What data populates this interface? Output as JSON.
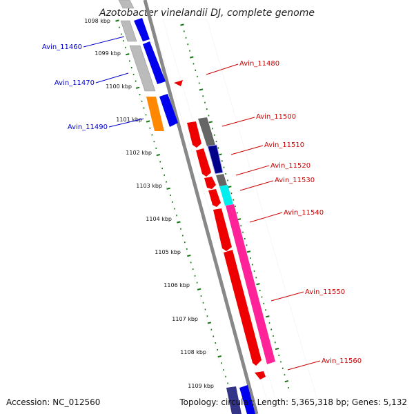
{
  "title": "Azotobacter vinelandii DJ, complete genome",
  "accession": "Accession: NC_012560",
  "summary": "Topology: circular; Length: 5,365,318 bp; Genes: 5,132",
  "ticks": [
    "1098 kbp",
    "1099 kbp",
    "1100 kbp",
    "1101 kbp",
    "1102 kbp",
    "1103 kbp",
    "1104 kbp",
    "1105 kbp",
    "1106 kbp",
    "1107 kbp",
    "1108 kbp",
    "1109 kbp"
  ],
  "left_labels": [
    "Avin_11460",
    "Avin_11470",
    "Avin_11490"
  ],
  "right_labels": [
    "Avin_11480",
    "Avin_11500",
    "Avin_11510",
    "Avin_11520",
    "Avin_11530",
    "Avin_11540",
    "Avin_11550",
    "Avin_11560"
  ],
  "colors": {
    "left_label": "#0000cc",
    "right_label": "#cc0000",
    "tick_mark": "#117711",
    "axis": "#808080",
    "blue": "#0000ee",
    "grey": "#bbbbbb",
    "dark_grey": "#666666",
    "orange": "#ff8800",
    "red": "#ee0000",
    "navy": "#000088",
    "cyan": "#00eeee",
    "magenta": "#ff2299"
  }
}
